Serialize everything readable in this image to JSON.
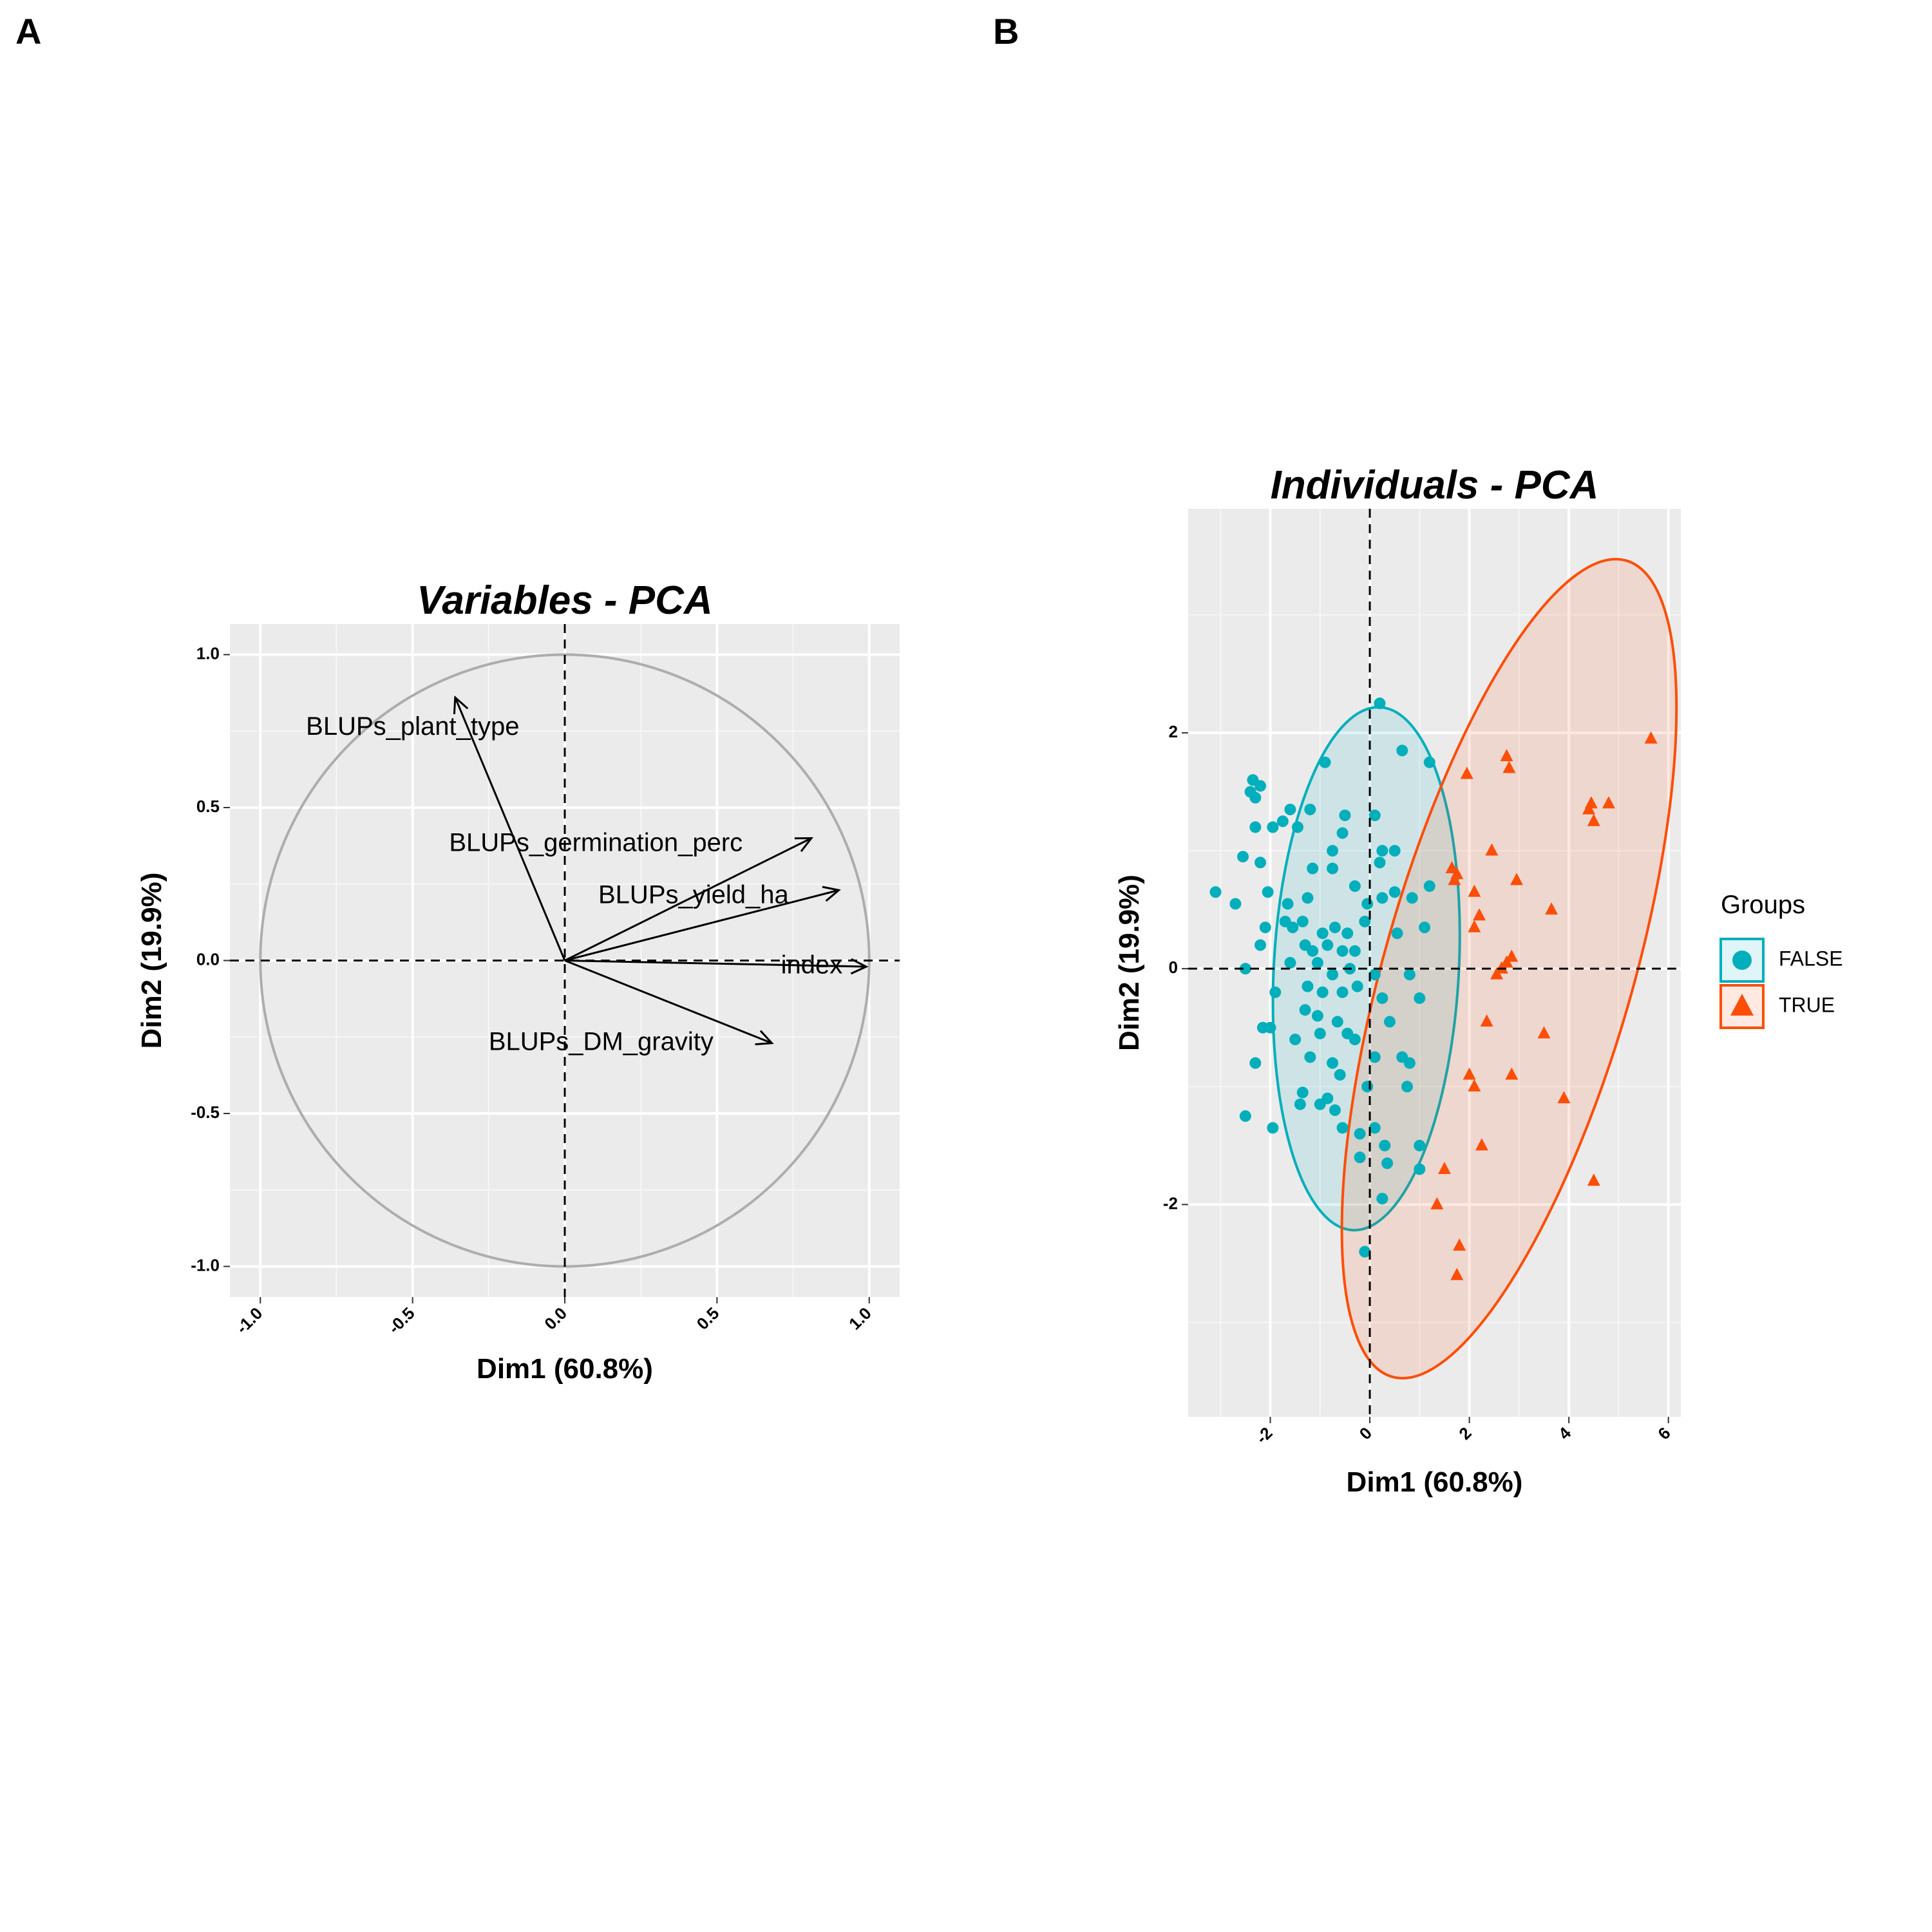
{
  "panels": {
    "a_letter": "A",
    "b_letter": "B"
  },
  "chart_data": [
    {
      "type": "vector",
      "title": "Variables - PCA",
      "xlabel": "Dim1 (60.8%)",
      "ylabel": "Dim2 (19.9%)",
      "xlim": [
        -1.1,
        1.1
      ],
      "ylim": [
        -1.1,
        1.1
      ],
      "xticks": [
        -1.0,
        -0.5,
        0.0,
        0.5,
        1.0
      ],
      "xtick_labels": [
        "-1.0",
        "-0.5",
        "0.0",
        "0.5",
        "1.0"
      ],
      "yticks": [
        -1.0,
        -0.5,
        0.0,
        0.5,
        1.0
      ],
      "ytick_labels": [
        "-1.0",
        "-0.5",
        "0.0",
        "0.5",
        "1.0"
      ],
      "grid": true,
      "circle_radius": 1.0,
      "vectors": [
        {
          "name": "BLUPs_plant_type",
          "x": -0.36,
          "y": 0.86
        },
        {
          "name": "BLUPs_germination_perc",
          "x": 0.81,
          "y": 0.4
        },
        {
          "name": "BLUPs_yield_ha",
          "x": 0.9,
          "y": 0.23
        },
        {
          "name": "index",
          "x": 0.99,
          "y": -0.02
        },
        {
          "name": "BLUPs_DM_gravity",
          "x": 0.68,
          "y": -0.27
        }
      ]
    },
    {
      "type": "scatter",
      "title": "Individuals - PCA",
      "xlabel": "Dim1 (60.8%)",
      "ylabel": "Dim2 (19.9%)",
      "xlim": [
        -3.65,
        6.25
      ],
      "ylim": [
        -3.8,
        3.9
      ],
      "xticks": [
        -2,
        0,
        2,
        4,
        6
      ],
      "xtick_labels": [
        "-2",
        "0",
        "2",
        "4",
        "6"
      ],
      "yticks": [
        -2,
        0,
        2
      ],
      "ytick_labels": [
        "-2",
        "0",
        "2"
      ],
      "grid": true,
      "legend_title": "Groups",
      "legend_placement": "right",
      "series": [
        {
          "name": "FALSE",
          "color": "#00AFBB",
          "marker": "circle",
          "ellipse": {
            "cx": -0.07,
            "cy": 0.0,
            "rx": 1.86,
            "ry": 2.22,
            "angle": 3
          },
          "points": [
            [
              0.2,
              2.25
            ],
            [
              0.65,
              1.85
            ],
            [
              1.2,
              1.75
            ],
            [
              -0.9,
              1.75
            ],
            [
              -2.2,
              1.55
            ],
            [
              -2.4,
              1.5
            ],
            [
              -2.35,
              1.6
            ],
            [
              -2.3,
              1.45
            ],
            [
              -1.6,
              1.35
            ],
            [
              -1.2,
              1.35
            ],
            [
              -0.5,
              1.3
            ],
            [
              0.1,
              1.3
            ],
            [
              -2.3,
              1.2
            ],
            [
              -1.95,
              1.2
            ],
            [
              -1.75,
              1.25
            ],
            [
              -1.45,
              1.2
            ],
            [
              -0.55,
              1.15
            ],
            [
              0.25,
              1.0
            ],
            [
              -2.55,
              0.95
            ],
            [
              -2.2,
              0.9
            ],
            [
              -1.15,
              0.85
            ],
            [
              -0.75,
              0.85
            ],
            [
              0.2,
              0.9
            ],
            [
              0.5,
              0.65
            ],
            [
              1.2,
              0.7
            ],
            [
              -3.1,
              0.65
            ],
            [
              -2.05,
              0.65
            ],
            [
              -1.65,
              0.55
            ],
            [
              -1.25,
              0.6
            ],
            [
              -0.3,
              0.7
            ],
            [
              -0.05,
              0.55
            ],
            [
              0.25,
              0.6
            ],
            [
              0.85,
              0.6
            ],
            [
              -2.7,
              0.55
            ],
            [
              -2.1,
              0.35
            ],
            [
              -1.7,
              0.4
            ],
            [
              -1.55,
              0.35
            ],
            [
              -1.35,
              0.4
            ],
            [
              -0.95,
              0.3
            ],
            [
              -0.7,
              0.35
            ],
            [
              -0.45,
              0.3
            ],
            [
              -0.1,
              0.4
            ],
            [
              0.55,
              0.3
            ],
            [
              1.1,
              0.35
            ],
            [
              -2.2,
              0.2
            ],
            [
              -1.3,
              0.2
            ],
            [
              -1.15,
              0.15
            ],
            [
              -0.85,
              0.2
            ],
            [
              -0.55,
              0.15
            ],
            [
              -0.3,
              0.15
            ],
            [
              -2.5,
              0.0
            ],
            [
              -1.6,
              0.05
            ],
            [
              -1.05,
              0.05
            ],
            [
              -0.75,
              -0.05
            ],
            [
              -0.4,
              0.0
            ],
            [
              0.1,
              -0.05
            ],
            [
              0.8,
              -0.05
            ],
            [
              -1.9,
              -0.2
            ],
            [
              -1.25,
              -0.15
            ],
            [
              -0.95,
              -0.2
            ],
            [
              -0.55,
              -0.2
            ],
            [
              -0.25,
              -0.15
            ],
            [
              0.25,
              -0.25
            ],
            [
              1.0,
              -0.25
            ],
            [
              -1.3,
              -0.35
            ],
            [
              -1.05,
              -0.4
            ],
            [
              -0.65,
              -0.45
            ],
            [
              0.4,
              -0.45
            ],
            [
              -1.5,
              -0.6
            ],
            [
              -1.0,
              -0.55
            ],
            [
              -0.45,
              -0.55
            ],
            [
              -0.3,
              -0.6
            ],
            [
              -2.0,
              -0.5
            ],
            [
              -2.15,
              -0.5
            ],
            [
              0.1,
              -0.75
            ],
            [
              0.65,
              -0.75
            ],
            [
              -1.2,
              -0.75
            ],
            [
              -0.75,
              -0.8
            ],
            [
              -2.3,
              -0.8
            ],
            [
              -0.6,
              -0.9
            ],
            [
              -1.35,
              -1.05
            ],
            [
              -0.85,
              -1.1
            ],
            [
              -0.05,
              -1.0
            ],
            [
              0.75,
              -1.0
            ],
            [
              -1.4,
              -1.15
            ],
            [
              -1.0,
              -1.15
            ],
            [
              -0.7,
              -1.2
            ],
            [
              -2.5,
              -1.25
            ],
            [
              -0.55,
              -1.35
            ],
            [
              -1.95,
              -1.35
            ],
            [
              0.1,
              -1.35
            ],
            [
              -0.2,
              -1.4
            ],
            [
              1.0,
              -1.5
            ],
            [
              0.3,
              -1.5
            ],
            [
              -0.2,
              -1.6
            ],
            [
              0.35,
              -1.65
            ],
            [
              1.0,
              -1.7
            ],
            [
              0.25,
              -1.95
            ],
            [
              -0.1,
              -2.4
            ],
            [
              0.8,
              -0.8
            ],
            [
              -0.75,
              1.0
            ],
            [
              0.5,
              1.0
            ]
          ]
        },
        {
          "name": "TRUE",
          "color": "#FC4E07",
          "marker": "triangle",
          "ellipse": {
            "cx": 2.8,
            "cy": 0.0,
            "rx": 2.5,
            "ry": 3.6,
            "angle": 16
          },
          "points": [
            [
              5.65,
              1.95
            ],
            [
              2.75,
              1.8
            ],
            [
              2.8,
              1.7
            ],
            [
              1.95,
              1.65
            ],
            [
              4.8,
              1.4
            ],
            [
              4.4,
              1.35
            ],
            [
              4.45,
              1.4
            ],
            [
              4.5,
              1.25
            ],
            [
              2.45,
              1.0
            ],
            [
              1.65,
              0.85
            ],
            [
              1.75,
              0.8
            ],
            [
              1.7,
              0.75
            ],
            [
              2.95,
              0.75
            ],
            [
              2.1,
              0.65
            ],
            [
              3.65,
              0.5
            ],
            [
              2.2,
              0.45
            ],
            [
              2.1,
              0.35
            ],
            [
              2.75,
              0.05
            ],
            [
              2.85,
              0.1
            ],
            [
              2.65,
              0.0
            ],
            [
              2.55,
              -0.05
            ],
            [
              2.35,
              -0.45
            ],
            [
              3.5,
              -0.55
            ],
            [
              2.0,
              -0.9
            ],
            [
              2.1,
              -1.0
            ],
            [
              2.85,
              -0.9
            ],
            [
              3.9,
              -1.1
            ],
            [
              2.25,
              -1.5
            ],
            [
              1.5,
              -1.7
            ],
            [
              4.5,
              -1.8
            ],
            [
              1.35,
              -2.0
            ],
            [
              1.8,
              -2.35
            ],
            [
              1.75,
              -2.6
            ]
          ]
        }
      ]
    }
  ]
}
